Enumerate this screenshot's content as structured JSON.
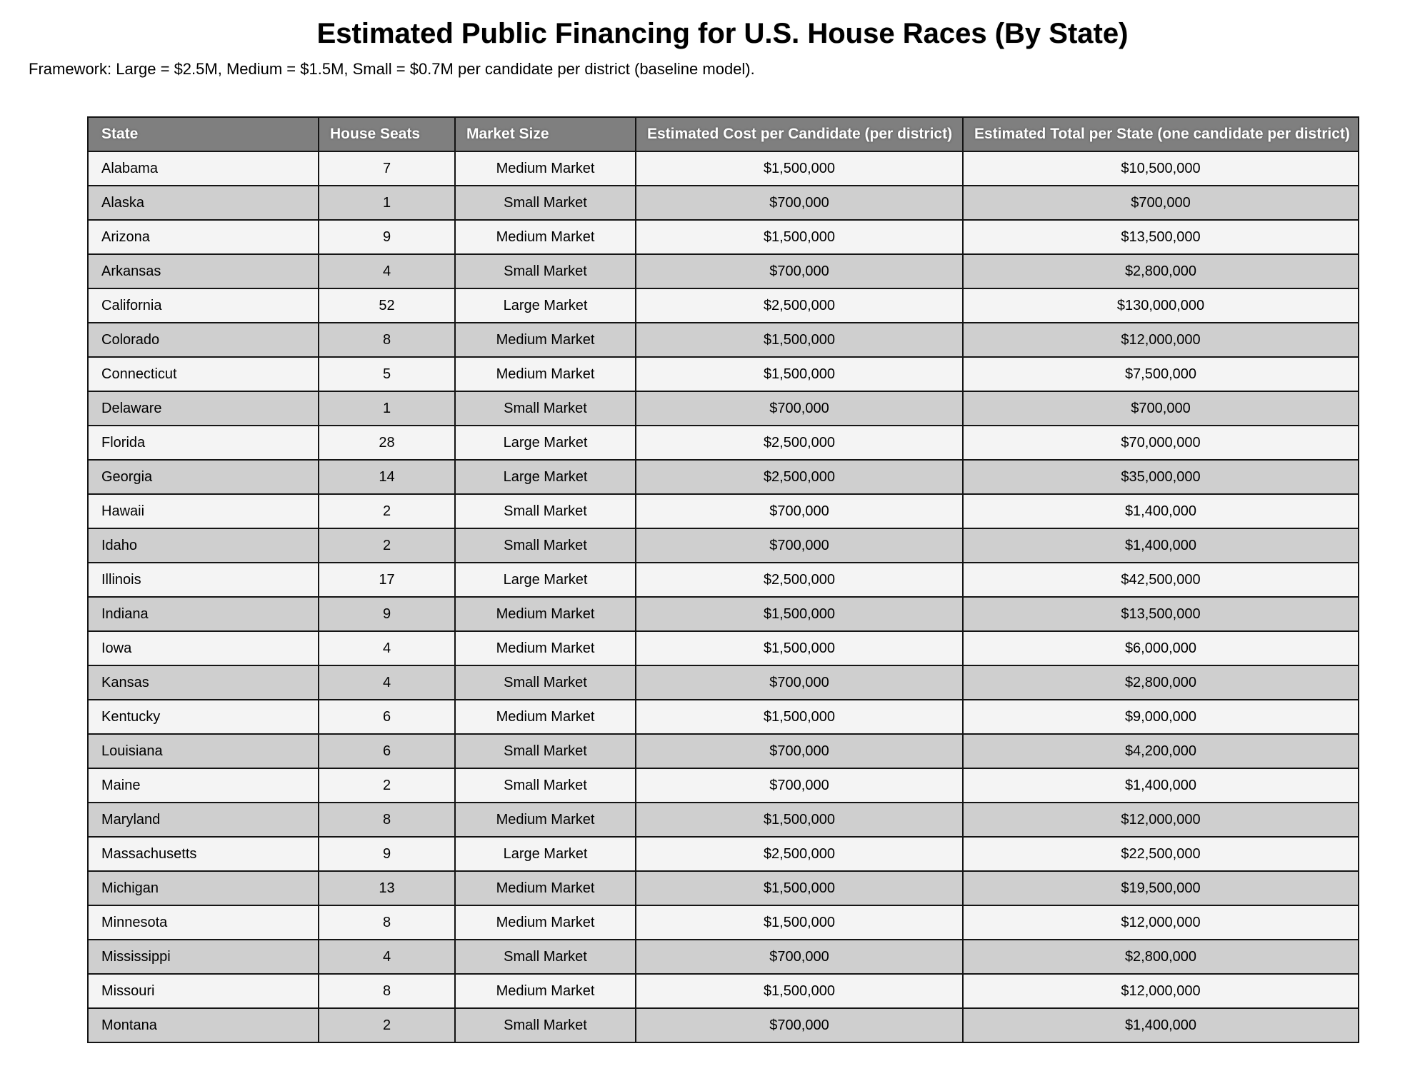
{
  "title": "Estimated Public Financing for U.S. House Races (By State)",
  "subtitle": "Framework: Large = $2.5M, Medium = $1.5M, Small = $0.7M per candidate per district (baseline model).",
  "colors": {
    "header_bg": "#7f7f7f",
    "header_text": "#ffffff",
    "row_light": "#f4f4f4",
    "row_dark": "#cfcfcf",
    "border": "#141414",
    "text": "#000000",
    "page_bg": "#ffffff"
  },
  "table": {
    "columns": [
      "State",
      "House Seats",
      "Market Size",
      "Estimated Cost per Candidate (per district)",
      "Estimated Total per State (one candidate per district)"
    ],
    "rows": [
      {
        "state": "Alabama",
        "seats": "7",
        "market": "Medium Market",
        "cost": "$1,500,000",
        "total": "$10,500,000"
      },
      {
        "state": "Alaska",
        "seats": "1",
        "market": "Small Market",
        "cost": "$700,000",
        "total": "$700,000"
      },
      {
        "state": "Arizona",
        "seats": "9",
        "market": "Medium Market",
        "cost": "$1,500,000",
        "total": "$13,500,000"
      },
      {
        "state": "Arkansas",
        "seats": "4",
        "market": "Small Market",
        "cost": "$700,000",
        "total": "$2,800,000"
      },
      {
        "state": "California",
        "seats": "52",
        "market": "Large Market",
        "cost": "$2,500,000",
        "total": "$130,000,000"
      },
      {
        "state": "Colorado",
        "seats": "8",
        "market": "Medium Market",
        "cost": "$1,500,000",
        "total": "$12,000,000"
      },
      {
        "state": "Connecticut",
        "seats": "5",
        "market": "Medium Market",
        "cost": "$1,500,000",
        "total": "$7,500,000"
      },
      {
        "state": "Delaware",
        "seats": "1",
        "market": "Small Market",
        "cost": "$700,000",
        "total": "$700,000"
      },
      {
        "state": "Florida",
        "seats": "28",
        "market": "Large Market",
        "cost": "$2,500,000",
        "total": "$70,000,000"
      },
      {
        "state": "Georgia",
        "seats": "14",
        "market": "Large Market",
        "cost": "$2,500,000",
        "total": "$35,000,000"
      },
      {
        "state": "Hawaii",
        "seats": "2",
        "market": "Small Market",
        "cost": "$700,000",
        "total": "$1,400,000"
      },
      {
        "state": "Idaho",
        "seats": "2",
        "market": "Small Market",
        "cost": "$700,000",
        "total": "$1,400,000"
      },
      {
        "state": "Illinois",
        "seats": "17",
        "market": "Large Market",
        "cost": "$2,500,000",
        "total": "$42,500,000"
      },
      {
        "state": "Indiana",
        "seats": "9",
        "market": "Medium Market",
        "cost": "$1,500,000",
        "total": "$13,500,000"
      },
      {
        "state": "Iowa",
        "seats": "4",
        "market": "Medium Market",
        "cost": "$1,500,000",
        "total": "$6,000,000"
      },
      {
        "state": "Kansas",
        "seats": "4",
        "market": "Small Market",
        "cost": "$700,000",
        "total": "$2,800,000"
      },
      {
        "state": "Kentucky",
        "seats": "6",
        "market": "Medium Market",
        "cost": "$1,500,000",
        "total": "$9,000,000"
      },
      {
        "state": "Louisiana",
        "seats": "6",
        "market": "Small Market",
        "cost": "$700,000",
        "total": "$4,200,000"
      },
      {
        "state": "Maine",
        "seats": "2",
        "market": "Small Market",
        "cost": "$700,000",
        "total": "$1,400,000"
      },
      {
        "state": "Maryland",
        "seats": "8",
        "market": "Medium Market",
        "cost": "$1,500,000",
        "total": "$12,000,000"
      },
      {
        "state": "Massachusetts",
        "seats": "9",
        "market": "Large Market",
        "cost": "$2,500,000",
        "total": "$22,500,000"
      },
      {
        "state": "Michigan",
        "seats": "13",
        "market": "Medium Market",
        "cost": "$1,500,000",
        "total": "$19,500,000"
      },
      {
        "state": "Minnesota",
        "seats": "8",
        "market": "Medium Market",
        "cost": "$1,500,000",
        "total": "$12,000,000"
      },
      {
        "state": "Mississippi",
        "seats": "4",
        "market": "Small Market",
        "cost": "$700,000",
        "total": "$2,800,000"
      },
      {
        "state": "Missouri",
        "seats": "8",
        "market": "Medium Market",
        "cost": "$1,500,000",
        "total": "$12,000,000"
      },
      {
        "state": "Montana",
        "seats": "2",
        "market": "Small Market",
        "cost": "$700,000",
        "total": "$1,400,000"
      }
    ]
  }
}
